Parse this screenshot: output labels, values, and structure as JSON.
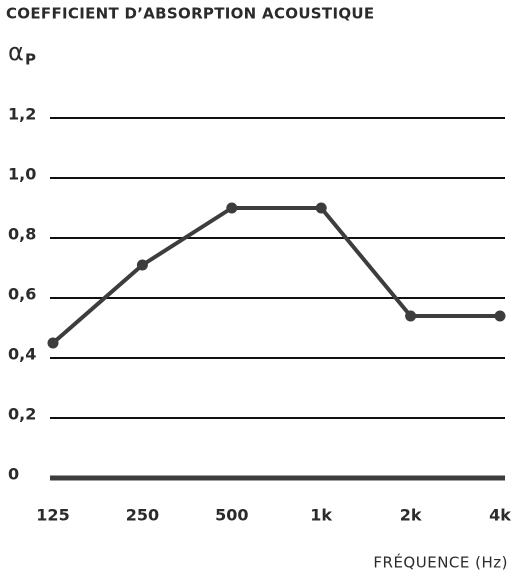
{
  "chart_data": {
    "type": "line",
    "title": "COEFFICIENT D’ABSORPTION ACOUSTIQUE",
    "y_label": "α",
    "y_label_subscript": "P",
    "x_label": "FRÉQUENCE (Hz)",
    "categories": [
      "125",
      "250",
      "500",
      "1k",
      "2k",
      "4k"
    ],
    "series": [
      {
        "name": "αP",
        "color": "#3d3d3d",
        "values": [
          0.45,
          0.71,
          0.9,
          0.9,
          0.54,
          0.54
        ]
      }
    ],
    "ylim": [
      0,
      1.2
    ],
    "yticks": [
      0,
      {
        "value": 0.2,
        "label": "0,2"
      },
      {
        "value": 0.4,
        "label": "0,4"
      },
      {
        "value": 0.6,
        "label": "0,6"
      },
      {
        "value": 0.8,
        "label": "0,8"
      },
      {
        "value": 1.0,
        "label": "1,0"
      },
      {
        "value": 1.2,
        "label": "1,2"
      }
    ],
    "grid": true
  }
}
